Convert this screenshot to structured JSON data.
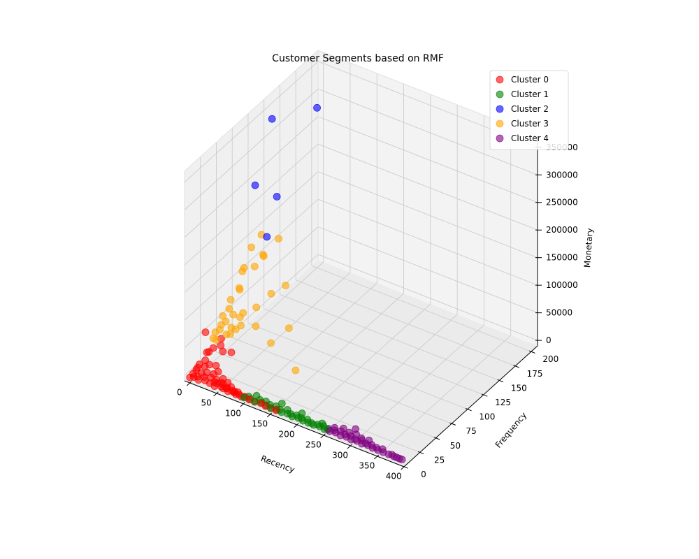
{
  "chart_data": {
    "type": "scatter",
    "title": "Customer Segments based on RMF",
    "xlabel": "Recency",
    "ylabel": "Frequency",
    "zlabel": "Monetary",
    "xlim": [
      -10,
      400
    ],
    "ylim": [
      0,
      210
    ],
    "zlim": [
      -10000,
      370000
    ],
    "xticks": [
      "0",
      "50",
      "100",
      "150",
      "200",
      "250",
      "300",
      "350",
      "400"
    ],
    "yticks": [
      "0",
      "25",
      "50",
      "75",
      "100",
      "125",
      "150",
      "175",
      "200"
    ],
    "zticks": [
      "0",
      "50000",
      "100000",
      "150000",
      "200000",
      "250000",
      "300000",
      "350000"
    ],
    "grid": true,
    "legend": "top-right",
    "series": [
      {
        "name": "Cluster 0",
        "color": "#ff0000",
        "points": [
          [
            0,
            0,
            0
          ],
          [
            5,
            2,
            500
          ],
          [
            10,
            4,
            1000
          ],
          [
            15,
            1,
            300
          ],
          [
            20,
            6,
            2000
          ],
          [
            25,
            3,
            800
          ],
          [
            30,
            8,
            3000
          ],
          [
            35,
            2,
            600
          ],
          [
            40,
            5,
            1500
          ],
          [
            45,
            1,
            200
          ],
          [
            50,
            7,
            2500
          ],
          [
            55,
            3,
            900
          ],
          [
            60,
            2,
            700
          ],
          [
            65,
            4,
            1200
          ],
          [
            70,
            1,
            400
          ],
          [
            75,
            3,
            1000
          ],
          [
            80,
            2,
            800
          ],
          [
            85,
            1,
            500
          ],
          [
            90,
            2,
            700
          ],
          [
            95,
            1,
            300
          ],
          [
            0,
            12,
            5000
          ],
          [
            10,
            15,
            8000
          ],
          [
            20,
            10,
            6000
          ],
          [
            5,
            20,
            12000
          ],
          [
            15,
            18,
            10000
          ],
          [
            2,
            25,
            20000
          ],
          [
            8,
            30,
            25000
          ],
          [
            3,
            22,
            60000
          ],
          [
            12,
            8,
            4000
          ],
          [
            30,
            12,
            5000
          ],
          [
            40,
            8,
            3000
          ],
          [
            55,
            6,
            2500
          ],
          [
            65,
            3,
            1800
          ],
          [
            100,
            2,
            800
          ],
          [
            110,
            1,
            500
          ],
          [
            120,
            1,
            400
          ],
          [
            130,
            2,
            600
          ],
          [
            140,
            1,
            300
          ],
          [
            150,
            1,
            200
          ],
          [
            160,
            1,
            100
          ],
          [
            30,
            40,
            15000
          ],
          [
            20,
            35,
            18000
          ],
          [
            45,
            5,
            1000
          ],
          [
            85,
            4,
            1200
          ],
          [
            25,
            20,
            10000
          ],
          [
            35,
            15,
            8000
          ],
          [
            50,
            10,
            6000
          ],
          [
            60,
            9,
            4000
          ],
          [
            70,
            6,
            3000
          ],
          [
            80,
            3,
            2000
          ],
          [
            0,
            5,
            1500
          ],
          [
            0,
            15,
            8000
          ],
          [
            0,
            30,
            15000
          ],
          [
            5,
            45,
            25000
          ],
          [
            10,
            40,
            20000
          ],
          [
            0,
            10,
            3000
          ]
        ]
      },
      {
        "name": "Cluster 1",
        "color": "#008000",
        "points": [
          [
            100,
            1,
            500
          ],
          [
            110,
            2,
            600
          ],
          [
            120,
            1,
            400
          ],
          [
            130,
            3,
            800
          ],
          [
            140,
            2,
            500
          ],
          [
            150,
            1,
            300
          ],
          [
            160,
            2,
            600
          ],
          [
            170,
            1,
            400
          ],
          [
            180,
            2,
            500
          ],
          [
            190,
            1,
            300
          ],
          [
            200,
            2,
            400
          ],
          [
            210,
            1,
            300
          ],
          [
            220,
            1,
            250
          ],
          [
            230,
            1,
            200
          ],
          [
            240,
            2,
            300
          ],
          [
            250,
            1,
            200
          ],
          [
            105,
            4,
            1000
          ],
          [
            125,
            5,
            1500
          ],
          [
            145,
            4,
            1200
          ],
          [
            165,
            3,
            900
          ],
          [
            185,
            3,
            800
          ],
          [
            205,
            3,
            700
          ],
          [
            225,
            2,
            500
          ],
          [
            115,
            8,
            2000
          ],
          [
            135,
            6,
            1500
          ],
          [
            155,
            5,
            1200
          ],
          [
            175,
            6,
            1500
          ],
          [
            195,
            4,
            1000
          ],
          [
            215,
            4,
            800
          ],
          [
            235,
            3,
            600
          ],
          [
            245,
            4,
            800
          ],
          [
            255,
            2,
            400
          ],
          [
            160,
            10,
            3000
          ],
          [
            200,
            8,
            2500
          ],
          [
            240,
            6,
            1500
          ]
        ]
      },
      {
        "name": "Cluster 2",
        "color": "#0000ff",
        "points": [
          [
            5,
            125,
            340000
          ],
          [
            0,
            200,
            280000
          ],
          [
            15,
            90,
            260000
          ],
          [
            20,
            120,
            210000
          ],
          [
            25,
            100,
            160000
          ]
        ]
      },
      {
        "name": "Cluster 3",
        "color": "#ffa500",
        "points": [
          [
            2,
            50,
            60000
          ],
          [
            5,
            60,
            80000
          ],
          [
            10,
            70,
            90000
          ],
          [
            8,
            55,
            70000
          ],
          [
            15,
            65,
            100000
          ],
          [
            3,
            80,
            110000
          ],
          [
            20,
            85,
            120000
          ],
          [
            12,
            75,
            125000
          ],
          [
            25,
            95,
            130000
          ],
          [
            30,
            90,
            140000
          ],
          [
            35,
            110,
            150000
          ],
          [
            0,
            40,
            40000
          ],
          [
            5,
            45,
            50000
          ],
          [
            10,
            48,
            55000
          ],
          [
            18,
            50,
            45000
          ],
          [
            22,
            45,
            40000
          ],
          [
            28,
            60,
            65000
          ],
          [
            40,
            70,
            35000
          ],
          [
            80,
            60,
            30000
          ],
          [
            150,
            40,
            28000
          ],
          [
            90,
            80,
            40000
          ],
          [
            8,
            90,
            145000
          ],
          [
            15,
            100,
            160000
          ],
          [
            6,
            42,
            45000
          ],
          [
            12,
            58,
            58000
          ],
          [
            20,
            62,
            52000
          ],
          [
            30,
            55,
            48000
          ],
          [
            35,
            75,
            62000
          ],
          [
            45,
            90,
            75000
          ],
          [
            60,
            100,
            85000
          ],
          [
            2,
            35,
            35000
          ],
          [
            4,
            38,
            30000
          ],
          [
            16,
            44,
            38000
          ],
          [
            24,
            52,
            42000
          ]
        ]
      },
      {
        "name": "Cluster 4",
        "color": "#800080",
        "points": [
          [
            260,
            1,
            300
          ],
          [
            270,
            2,
            400
          ],
          [
            280,
            1,
            300
          ],
          [
            290,
            2,
            400
          ],
          [
            300,
            1,
            300
          ],
          [
            310,
            2,
            400
          ],
          [
            320,
            1,
            300
          ],
          [
            330,
            2,
            400
          ],
          [
            340,
            1,
            300
          ],
          [
            350,
            1,
            300
          ],
          [
            360,
            1,
            200
          ],
          [
            370,
            1,
            200
          ],
          [
            380,
            1,
            200
          ],
          [
            385,
            1,
            100
          ],
          [
            390,
            1,
            150
          ],
          [
            395,
            1,
            200
          ],
          [
            375,
            2,
            300
          ],
          [
            265,
            4,
            600
          ],
          [
            285,
            4,
            700
          ],
          [
            305,
            3,
            500
          ],
          [
            325,
            3,
            500
          ],
          [
            345,
            3,
            500
          ],
          [
            275,
            6,
            900
          ],
          [
            295,
            5,
            800
          ],
          [
            315,
            5,
            700
          ],
          [
            335,
            4,
            600
          ],
          [
            355,
            4,
            600
          ],
          [
            300,
            8,
            12000
          ],
          [
            255,
            3,
            800
          ],
          [
            262,
            7,
            1000
          ],
          [
            275,
            10,
            1500
          ],
          [
            288,
            8,
            1200
          ],
          [
            300,
            9,
            1300
          ],
          [
            312,
            7,
            1100
          ],
          [
            325,
            8,
            1000
          ]
        ]
      }
    ]
  }
}
